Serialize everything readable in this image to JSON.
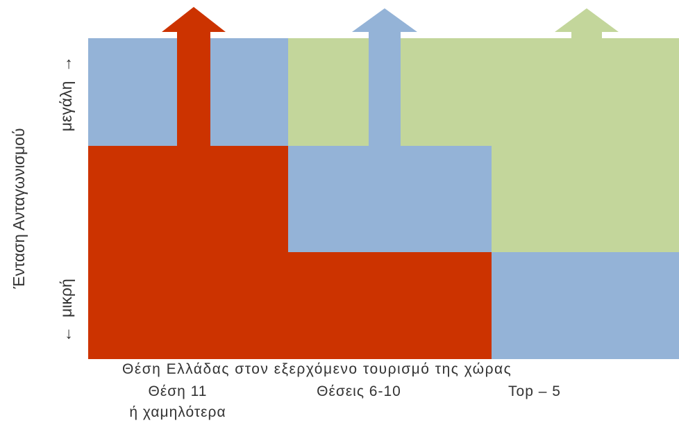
{
  "colors": {
    "red": "#cc3300",
    "blue": "#94b3d7",
    "green": "#c3d69b"
  },
  "y_axis": {
    "label": "Ένταση Ανταγωνισμού",
    "high": "μεγάλη",
    "low": "μικρή",
    "high_icon": "arrow-up-icon",
    "low_icon": "arrow-down-icon"
  },
  "x_axis": {
    "title": "Θέση Ελλάδας στον εξερχόμενο τουρισμό της χώρας",
    "categories": [
      {
        "line1": "Θέση 11",
        "line2": "ή χαμηλότερα"
      },
      {
        "line1": "Θέσεις 6-10",
        "line2": ""
      },
      {
        "line1": "Top – 5",
        "line2": ""
      }
    ]
  }
}
